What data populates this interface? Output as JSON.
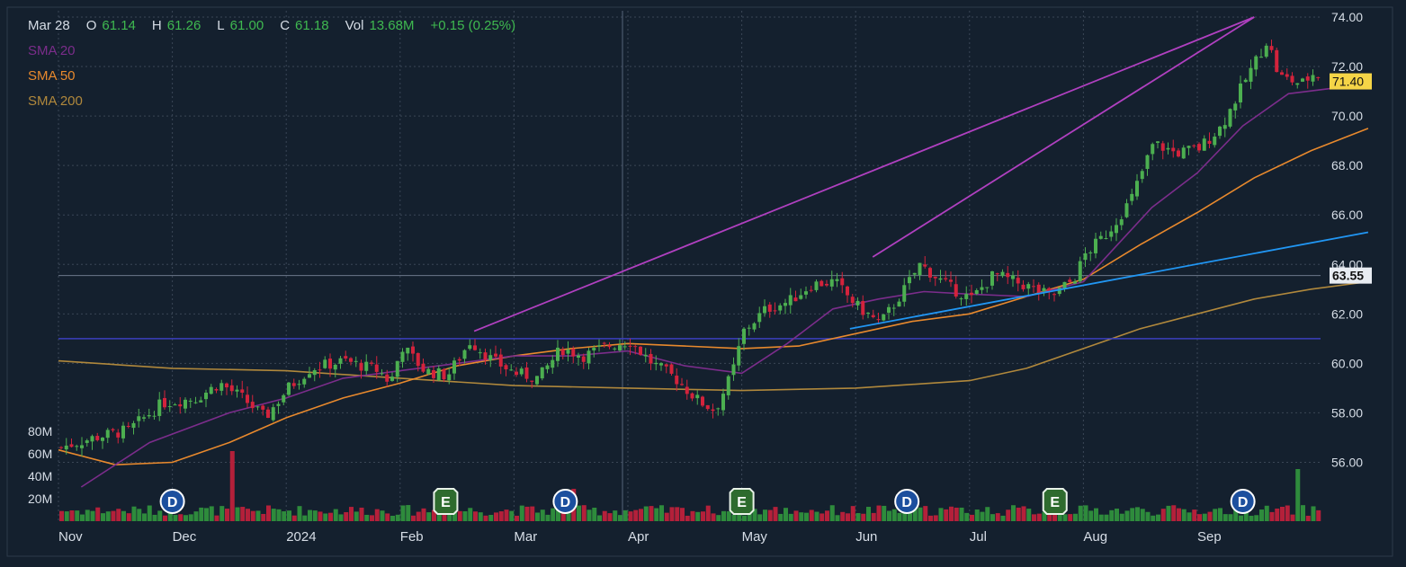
{
  "ohlc": {
    "date": "Mar 28",
    "open_label": "O",
    "open": "61.14",
    "high_label": "H",
    "high": "61.26",
    "low_label": "L",
    "low": "61.00",
    "close_label": "C",
    "close": "61.18",
    "vol_label": "Vol",
    "vol": "13.68M",
    "change": "+0.15 (0.25%)"
  },
  "sma_legend": [
    {
      "label": "SMA 20",
      "color": "#7b2d8b"
    },
    {
      "label": "SMA 50",
      "color": "#e8892d"
    },
    {
      "label": "SMA 200",
      "color": "#b0883c"
    }
  ],
  "colors": {
    "background": "#14202e",
    "grid": "#3a4656",
    "up": "#4caf50",
    "down": "#d3233c",
    "text": "#d6dde6",
    "trendline_purple": "#b040c0",
    "trendline_blue": "#2196f3",
    "hline_navy": "#3b3fbf",
    "price_badge": "#f5d547"
  },
  "chart_data": {
    "type": "candlestick",
    "x_labels": [
      "Nov",
      "Dec",
      "2024",
      "Feb",
      "Mar",
      "Apr",
      "May",
      "Jun",
      "Jul",
      "Aug",
      "Sep"
    ],
    "y_ticks": [
      "74.00",
      "72.00",
      "70.00",
      "68.00",
      "66.00",
      "64.00",
      "62.00",
      "60.00",
      "58.00",
      "56.00"
    ],
    "ylim": [
      55,
      74
    ],
    "volume_ticks": [
      "80M",
      "60M",
      "40M",
      "20M"
    ],
    "volume_max": 80,
    "current_price": "71.40",
    "crosshair_price": "63.55",
    "horizontal_line": 61.0,
    "event_markers": [
      {
        "type": "D",
        "month_pos": 1.0
      },
      {
        "type": "E",
        "month_pos": 3.4
      },
      {
        "type": "D",
        "month_pos": 4.45
      },
      {
        "type": "E",
        "month_pos": 6.0
      },
      {
        "type": "D",
        "month_pos": 7.45
      },
      {
        "type": "E",
        "month_pos": 8.75
      },
      {
        "type": "D",
        "month_pos": 10.4
      }
    ],
    "trend_lines": [
      {
        "color": "purple",
        "from": {
          "month_pos": 3.65,
          "price": 61.3
        },
        "to": {
          "month_pos": 10.5,
          "price": 74.0
        }
      },
      {
        "color": "purple",
        "from": {
          "month_pos": 7.15,
          "price": 64.3
        },
        "to": {
          "month_pos": 10.5,
          "price": 74.0
        }
      },
      {
        "color": "blue",
        "from": {
          "month_pos": 6.95,
          "price": 61.4
        },
        "to": {
          "month_pos": 11.5,
          "price": 65.3
        }
      }
    ],
    "price_path": [
      [
        0.0,
        56.6
      ],
      [
        0.3,
        57.0
      ],
      [
        0.6,
        57.3
      ],
      [
        0.9,
        58.4
      ],
      [
        1.2,
        58.6
      ],
      [
        1.4,
        59.2
      ],
      [
        1.6,
        58.6
      ],
      [
        1.8,
        57.8
      ],
      [
        2.0,
        59.0
      ],
      [
        2.2,
        59.8
      ],
      [
        2.5,
        60.1
      ],
      [
        2.8,
        59.7
      ],
      [
        2.9,
        59.2
      ],
      [
        3.0,
        60.7
      ],
      [
        3.2,
        59.7
      ],
      [
        3.4,
        59.5
      ],
      [
        3.6,
        60.9
      ],
      [
        3.8,
        60.1
      ],
      [
        4.0,
        59.6
      ],
      [
        4.2,
        59.4
      ],
      [
        4.4,
        60.6
      ],
      [
        4.6,
        60.3
      ],
      [
        4.8,
        60.7
      ],
      [
        5.0,
        60.9
      ],
      [
        5.2,
        60.0
      ],
      [
        5.4,
        59.4
      ],
      [
        5.6,
        58.5
      ],
      [
        5.75,
        58.1
      ],
      [
        5.9,
        59.6
      ],
      [
        6.0,
        61.3
      ],
      [
        6.2,
        62.2
      ],
      [
        6.4,
        62.5
      ],
      [
        6.6,
        63.2
      ],
      [
        6.8,
        63.3
      ],
      [
        7.0,
        62.3
      ],
      [
        7.2,
        61.6
      ],
      [
        7.4,
        62.9
      ],
      [
        7.55,
        64.0
      ],
      [
        7.8,
        63.1
      ],
      [
        8.0,
        62.6
      ],
      [
        8.2,
        63.6
      ],
      [
        8.5,
        63.1
      ],
      [
        8.7,
        62.7
      ],
      [
        8.9,
        63.4
      ],
      [
        9.0,
        64.4
      ],
      [
        9.2,
        65.3
      ],
      [
        9.4,
        66.6
      ],
      [
        9.6,
        68.9
      ],
      [
        9.8,
        68.5
      ],
      [
        10.0,
        68.7
      ],
      [
        10.2,
        69.6
      ],
      [
        10.4,
        71.4
      ],
      [
        10.6,
        73.1
      ],
      [
        10.7,
        71.6
      ],
      [
        10.9,
        71.3
      ],
      [
        11.0,
        71.7
      ],
      [
        11.2,
        71.5
      ],
      [
        11.4,
        71.2
      ],
      [
        11.5,
        71.4
      ]
    ],
    "sma20_path": [
      [
        0.2,
        55.0
      ],
      [
        0.8,
        56.8
      ],
      [
        1.5,
        58.0
      ],
      [
        2.0,
        58.6
      ],
      [
        2.5,
        59.4
      ],
      [
        3.0,
        59.7
      ],
      [
        3.5,
        60.0
      ],
      [
        4.0,
        60.3
      ],
      [
        4.5,
        60.3
      ],
      [
        5.0,
        60.5
      ],
      [
        5.5,
        59.9
      ],
      [
        6.0,
        59.6
      ],
      [
        6.4,
        60.8
      ],
      [
        6.8,
        62.2
      ],
      [
        7.2,
        62.6
      ],
      [
        7.6,
        62.9
      ],
      [
        8.0,
        62.8
      ],
      [
        8.5,
        62.7
      ],
      [
        9.0,
        63.3
      ],
      [
        9.3,
        64.8
      ],
      [
        9.6,
        66.3
      ],
      [
        10.0,
        67.7
      ],
      [
        10.4,
        69.6
      ],
      [
        10.8,
        70.9
      ],
      [
        11.5,
        71.3
      ]
    ],
    "sma50_path": [
      [
        0.0,
        56.5
      ],
      [
        0.5,
        55.9
      ],
      [
        1.0,
        56.0
      ],
      [
        1.5,
        56.8
      ],
      [
        2.0,
        57.8
      ],
      [
        2.5,
        58.6
      ],
      [
        3.0,
        59.2
      ],
      [
        3.5,
        59.9
      ],
      [
        4.0,
        60.3
      ],
      [
        4.5,
        60.6
      ],
      [
        5.0,
        60.8
      ],
      [
        5.5,
        60.7
      ],
      [
        6.0,
        60.6
      ],
      [
        6.5,
        60.7
      ],
      [
        7.0,
        61.2
      ],
      [
        7.5,
        61.7
      ],
      [
        8.0,
        62.0
      ],
      [
        8.5,
        62.7
      ],
      [
        9.0,
        63.4
      ],
      [
        9.5,
        64.8
      ],
      [
        10.0,
        66.1
      ],
      [
        10.5,
        67.5
      ],
      [
        11.0,
        68.6
      ],
      [
        11.5,
        69.5
      ]
    ],
    "sma200_path": [
      [
        0.0,
        60.1
      ],
      [
        1.0,
        59.8
      ],
      [
        2.0,
        59.7
      ],
      [
        3.0,
        59.4
      ],
      [
        4.0,
        59.1
      ],
      [
        5.0,
        59.0
      ],
      [
        6.0,
        58.9
      ],
      [
        7.0,
        59.0
      ],
      [
        8.0,
        59.3
      ],
      [
        8.5,
        59.8
      ],
      [
        9.0,
        60.6
      ],
      [
        9.5,
        61.4
      ],
      [
        10.0,
        62.0
      ],
      [
        10.5,
        62.6
      ],
      [
        11.0,
        63.0
      ],
      [
        11.5,
        63.3
      ]
    ]
  }
}
